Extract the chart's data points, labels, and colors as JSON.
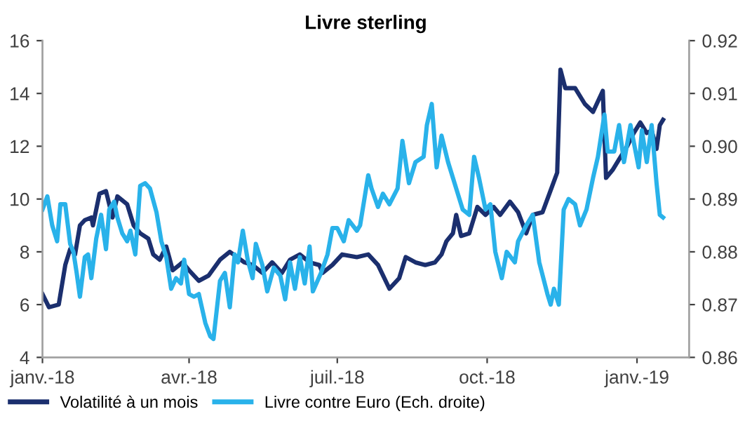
{
  "chart_data": {
    "type": "line",
    "title": "Livre sterling",
    "legend": "bottom",
    "grid": false,
    "line_style": "solid",
    "marker": "none",
    "xlim": [
      "2018-01-01",
      "2019-02-02"
    ],
    "xticks": [
      {
        "value": "2018-01-01",
        "label": "janv.-18"
      },
      {
        "value": "2018-04-01",
        "label": "avr.-18"
      },
      {
        "value": "2018-07-01",
        "label": "juil.-18"
      },
      {
        "value": "2018-10-01",
        "label": "oct.-18"
      },
      {
        "value": "2019-01-01",
        "label": "janv.-19"
      }
    ],
    "ylim": [
      4,
      16
    ],
    "yticks": [
      4,
      6,
      8,
      10,
      12,
      14,
      16
    ],
    "y2lim": [
      0.86,
      0.92
    ],
    "y2ticks": [
      {
        "value": 0.86,
        "label": "0.86"
      },
      {
        "value": 0.87,
        "label": "0.87"
      },
      {
        "value": 0.88,
        "label": "0.88"
      },
      {
        "value": 0.89,
        "label": "0.89"
      },
      {
        "value": 0.9,
        "label": "0.90"
      },
      {
        "value": 0.91,
        "label": "0.91"
      },
      {
        "value": 0.92,
        "label": "0.92"
      }
    ],
    "series": [
      {
        "name": "Volatilité à un mois",
        "color": "#1b2f6e",
        "x": [
          "2018-01-01",
          "2018-01-05",
          "2018-01-11",
          "2018-01-15",
          "2018-01-18",
          "2018-01-21",
          "2018-01-24",
          "2018-01-27",
          "2018-01-31",
          "2018-02-01",
          "2018-02-05",
          "2018-02-09",
          "2018-02-13",
          "2018-02-16",
          "2018-02-22",
          "2018-02-26",
          "2018-03-02",
          "2018-03-07",
          "2018-03-10",
          "2018-03-14",
          "2018-03-18",
          "2018-03-22",
          "2018-03-28",
          "2018-04-01",
          "2018-04-07",
          "2018-04-13",
          "2018-04-20",
          "2018-04-26",
          "2018-05-05",
          "2018-05-10",
          "2018-05-16",
          "2018-05-22",
          "2018-05-28",
          "2018-06-02",
          "2018-06-08",
          "2018-06-14",
          "2018-06-20",
          "2018-06-22",
          "2018-06-28",
          "2018-07-04",
          "2018-07-13",
          "2018-07-20",
          "2018-07-26",
          "2018-08-02",
          "2018-08-08",
          "2018-08-12",
          "2018-08-18",
          "2018-08-24",
          "2018-08-30",
          "2018-09-03",
          "2018-09-06",
          "2018-09-10",
          "2018-09-12",
          "2018-09-15",
          "2018-09-20",
          "2018-09-25",
          "2018-09-30",
          "2018-10-05",
          "2018-10-09",
          "2018-10-15",
          "2018-10-20",
          "2018-10-25",
          "2018-10-29",
          "2018-11-04",
          "2018-11-10",
          "2018-11-13",
          "2018-11-15",
          "2018-11-18",
          "2018-11-24",
          "2018-11-30",
          "2018-12-05",
          "2018-12-08",
          "2018-12-11",
          "2018-12-13",
          "2018-12-17",
          "2018-12-21",
          "2018-12-26",
          "2018-12-30",
          "2019-01-03",
          "2019-01-07",
          "2019-01-10",
          "2019-01-13",
          "2019-01-15",
          "2019-01-17"
        ],
        "values": [
          6.4,
          5.9,
          6.0,
          7.5,
          8.1,
          7.9,
          9.0,
          9.2,
          9.3,
          9.0,
          10.2,
          10.3,
          9.3,
          10.1,
          9.8,
          9.0,
          8.7,
          8.5,
          7.9,
          7.7,
          8.2,
          7.3,
          7.6,
          7.3,
          6.9,
          7.1,
          7.7,
          8.0,
          7.6,
          7.5,
          7.2,
          7.6,
          7.2,
          7.7,
          7.9,
          7.6,
          7.5,
          7.2,
          7.5,
          7.9,
          7.8,
          7.9,
          7.5,
          6.6,
          7.0,
          7.8,
          7.6,
          7.5,
          7.6,
          7.9,
          8.4,
          8.7,
          9.4,
          8.6,
          8.7,
          9.7,
          9.4,
          9.7,
          9.4,
          9.9,
          9.5,
          8.7,
          9.4,
          9.5,
          10.5,
          11.0,
          14.9,
          14.2,
          14.2,
          13.6,
          13.3,
          13.7,
          14.1,
          10.8,
          11.1,
          11.5,
          12.0,
          12.5,
          12.9,
          12.5,
          12.6,
          11.9,
          12.8,
          13.0
        ]
      },
      {
        "name": "Livre contre Euro (Ech. droite)",
        "color": "#29b2ea",
        "axis": "y2",
        "x": [
          "2018-01-01",
          "2018-01-04",
          "2018-01-07",
          "2018-01-10",
          "2018-01-12",
          "2018-01-15",
          "2018-01-18",
          "2018-01-20",
          "2018-01-22",
          "2018-01-24",
          "2018-01-27",
          "2018-01-29",
          "2018-01-31",
          "2018-02-03",
          "2018-02-06",
          "2018-02-09",
          "2018-02-11",
          "2018-02-14",
          "2018-02-16",
          "2018-02-19",
          "2018-02-22",
          "2018-02-24",
          "2018-02-27",
          "2018-03-02",
          "2018-03-05",
          "2018-03-08",
          "2018-03-12",
          "2018-03-15",
          "2018-03-18",
          "2018-03-21",
          "2018-03-24",
          "2018-03-27",
          "2018-03-29",
          "2018-04-01",
          "2018-04-04",
          "2018-04-07",
          "2018-04-11",
          "2018-04-14",
          "2018-04-16",
          "2018-04-20",
          "2018-04-23",
          "2018-04-26",
          "2018-04-29",
          "2018-05-01",
          "2018-05-04",
          "2018-05-07",
          "2018-05-10",
          "2018-05-12",
          "2018-05-16",
          "2018-05-19",
          "2018-05-23",
          "2018-05-27",
          "2018-05-30",
          "2018-06-02",
          "2018-06-05",
          "2018-06-08",
          "2018-06-11",
          "2018-06-14",
          "2018-06-16",
          "2018-06-21",
          "2018-06-25",
          "2018-06-28",
          "2018-07-01",
          "2018-07-05",
          "2018-07-08",
          "2018-07-13",
          "2018-07-15",
          "2018-07-20",
          "2018-07-22",
          "2018-07-26",
          "2018-07-29",
          "2018-08-02",
          "2018-08-07",
          "2018-08-10",
          "2018-08-14",
          "2018-08-18",
          "2018-08-23",
          "2018-08-25",
          "2018-08-28",
          "2018-08-31",
          "2018-09-03",
          "2018-09-07",
          "2018-09-12",
          "2018-09-16",
          "2018-09-20",
          "2018-09-23",
          "2018-09-26",
          "2018-09-30",
          "2018-10-03",
          "2018-10-06",
          "2018-10-10",
          "2018-10-13",
          "2018-10-18",
          "2018-10-20",
          "2018-10-25",
          "2018-10-29",
          "2018-11-02",
          "2018-11-07",
          "2018-11-09",
          "2018-11-11",
          "2018-11-14",
          "2018-11-17",
          "2018-11-20",
          "2018-11-24",
          "2018-11-27",
          "2018-12-01",
          "2018-12-05",
          "2018-12-08",
          "2018-12-12",
          "2018-12-14",
          "2018-12-18",
          "2018-12-21",
          "2018-12-24",
          "2018-12-28",
          "2019-01-02",
          "2019-01-04",
          "2019-01-07",
          "2019-01-10",
          "2019-01-13",
          "2019-01-15",
          "2019-01-17"
        ],
        "values": [
          0.888,
          0.8905,
          0.885,
          0.882,
          0.889,
          0.889,
          0.8815,
          0.88,
          0.876,
          0.8715,
          0.879,
          0.8795,
          0.875,
          0.8825,
          0.887,
          0.8805,
          0.888,
          0.8895,
          0.8865,
          0.8835,
          0.882,
          0.884,
          0.8795,
          0.8925,
          0.893,
          0.892,
          0.8875,
          0.882,
          0.879,
          0.873,
          0.875,
          0.874,
          0.8785,
          0.872,
          0.8715,
          0.872,
          0.8665,
          0.864,
          0.8635,
          0.8745,
          0.876,
          0.8695,
          0.8795,
          0.878,
          0.884,
          0.8785,
          0.875,
          0.8815,
          0.8775,
          0.8725,
          0.877,
          0.8755,
          0.871,
          0.878,
          0.873,
          0.879,
          0.874,
          0.881,
          0.8725,
          0.876,
          0.8795,
          0.8845,
          0.8845,
          0.882,
          0.886,
          0.884,
          0.885,
          0.8945,
          0.892,
          0.8885,
          0.891,
          0.889,
          0.892,
          0.901,
          0.893,
          0.897,
          0.898,
          0.904,
          0.908,
          0.896,
          0.902,
          0.897,
          0.892,
          0.888,
          0.887,
          0.898,
          0.894,
          0.888,
          0.889,
          0.88,
          0.875,
          0.88,
          0.878,
          0.882,
          0.885,
          0.887,
          0.878,
          0.872,
          0.87,
          0.873,
          0.87,
          0.888,
          0.89,
          0.889,
          0.885,
          0.888,
          0.894,
          0.898,
          0.906,
          0.899,
          0.899,
          0.904,
          0.897,
          0.904,
          0.896,
          0.903,
          0.897,
          0.904,
          0.893,
          0.887,
          0.8865
        ]
      }
    ]
  }
}
